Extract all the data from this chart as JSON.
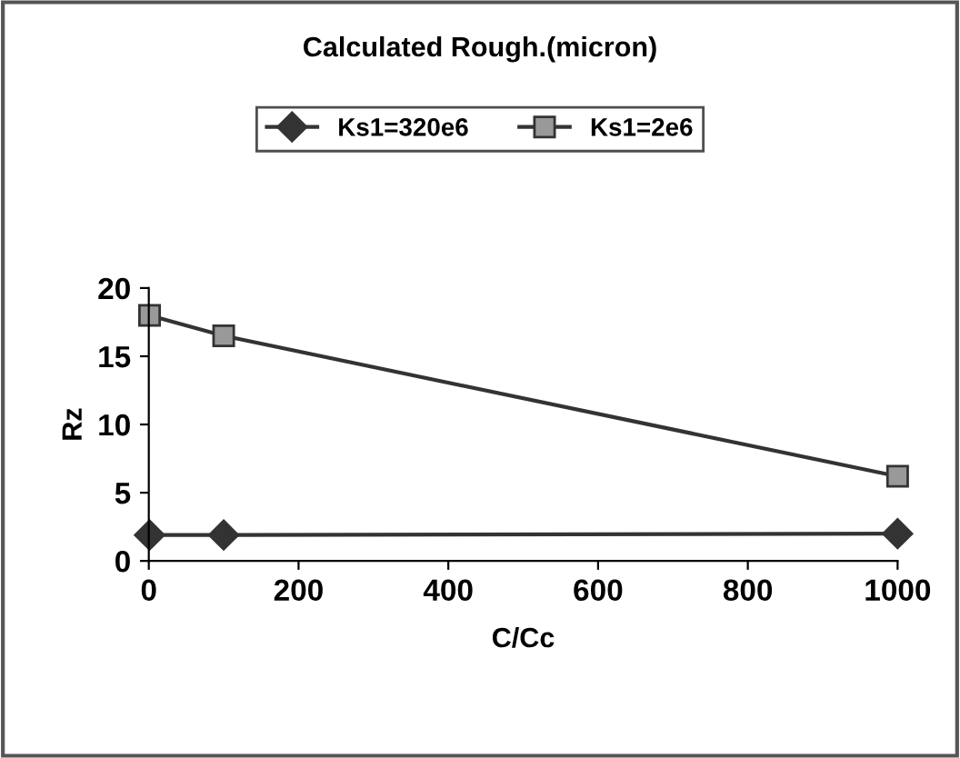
{
  "chart_data": {
    "type": "line",
    "title": "Calculated Rough.(micron)",
    "xlabel": "C/Cc",
    "ylabel": "Rz",
    "x": [
      1,
      100,
      1000
    ],
    "series": [
      {
        "name": "Ks1=320e6",
        "color": "#333333",
        "marker": "diamond",
        "values": [
          1.9,
          1.9,
          2.0
        ]
      },
      {
        "name": "Ks1=2e6",
        "color": "#333333",
        "marker": "square",
        "values": [
          18,
          16.5,
          6.2
        ]
      }
    ],
    "xlim": [
      0,
      1000
    ],
    "xticks": [
      0,
      200,
      400,
      600,
      800,
      1000
    ],
    "ylim": [
      0,
      20
    ],
    "yticks": [
      0,
      5,
      10,
      15,
      20
    ],
    "grid": false,
    "legend": "top",
    "line_style": "solid"
  }
}
